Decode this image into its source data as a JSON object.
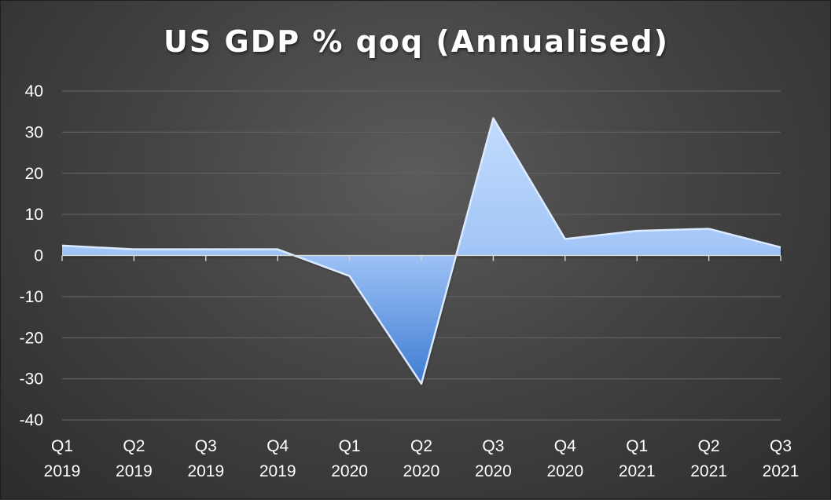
{
  "chart_data": {
    "type": "area",
    "title": "US GDP % qoq (Annualised)",
    "xlabel": "",
    "ylabel": "",
    "categories": [
      [
        "Q1",
        "2019"
      ],
      [
        "Q2",
        "2019"
      ],
      [
        "Q3",
        "2019"
      ],
      [
        "Q4",
        "2019"
      ],
      [
        "Q1",
        "2020"
      ],
      [
        "Q2",
        "2020"
      ],
      [
        "Q3",
        "2020"
      ],
      [
        "Q4",
        "2020"
      ],
      [
        "Q1",
        "2021"
      ],
      [
        "Q2",
        "2021"
      ],
      [
        "Q3",
        "2021"
      ]
    ],
    "values": [
      2.4,
      1.5,
      1.5,
      1.5,
      -5.0,
      -31.2,
      33.4,
      4.0,
      6.0,
      6.5,
      2.0
    ],
    "ylim": [
      -40,
      40
    ],
    "yticks": [
      -40,
      -30,
      -20,
      -10,
      0,
      10,
      20,
      30,
      40
    ],
    "grid": true,
    "legend": "none",
    "colors": {
      "fill_light": "#b5d3fb",
      "fill_dark": "#3f7fd6",
      "edge": "#dceaff",
      "grid": "#606060",
      "axis": "#d8d8d8",
      "text": "#ffffff"
    }
  }
}
